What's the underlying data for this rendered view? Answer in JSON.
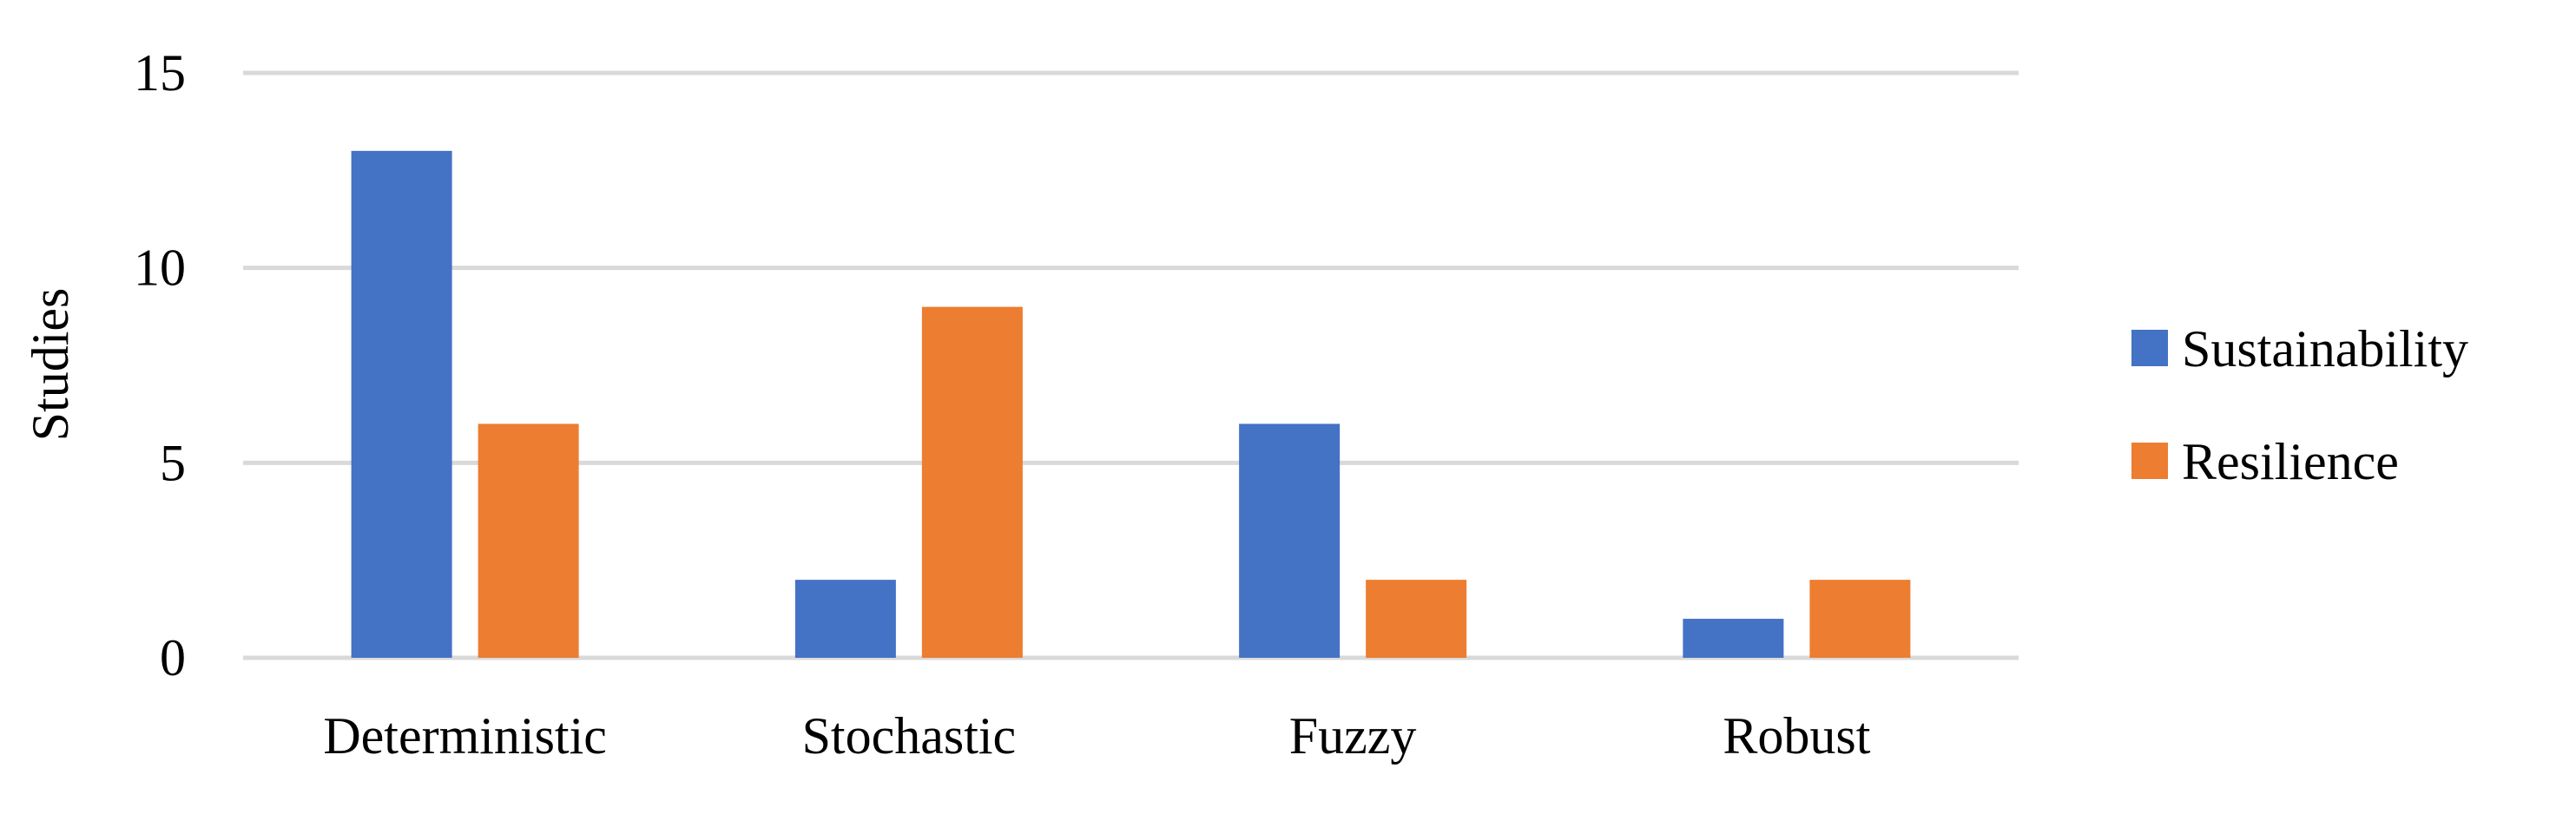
{
  "chart_data": {
    "type": "bar",
    "title": "",
    "xlabel": "",
    "ylabel": "Studies",
    "categories": [
      "Deterministic",
      "Stochastic",
      "Fuzzy",
      "Robust"
    ],
    "series": [
      {
        "name": "Sustainability",
        "values": [
          13,
          2,
          6,
          1
        ],
        "color": "#4472c4"
      },
      {
        "name": "Resilience",
        "values": [
          6,
          9,
          2,
          2
        ],
        "color": "#ed7d31"
      }
    ],
    "ylim": [
      0,
      15
    ],
    "yticks": [
      0,
      5,
      10,
      15
    ],
    "grid": true,
    "legend_position": "right"
  }
}
